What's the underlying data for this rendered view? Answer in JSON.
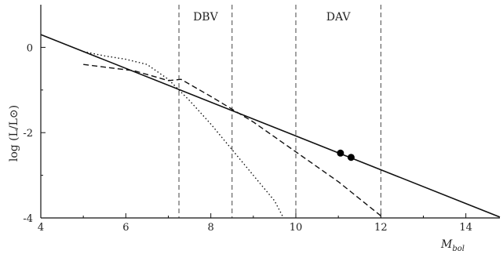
{
  "chart_data": {
    "type": "line",
    "title": "",
    "xlabel": "M",
    "xlabel_sub": "bol",
    "ylabel": "log (L/L⊙)",
    "xlim": [
      4,
      14.8
    ],
    "ylim": [
      -4,
      1.0
    ],
    "xticks": [
      4,
      6,
      8,
      10,
      12,
      14
    ],
    "yticks": [
      0,
      -2,
      -4
    ],
    "xtick_labels": [
      "4",
      "6",
      "8",
      "10",
      "12",
      "14"
    ],
    "ytick_labels": [
      "0",
      "-2",
      "-4"
    ],
    "grid": false,
    "legend": "none",
    "regions": [
      {
        "label": "DBV",
        "x_min": 7.25,
        "x_max": 8.5
      },
      {
        "label": "DAV",
        "x_min": 10.0,
        "x_max": 12.0
      }
    ],
    "series": [
      {
        "style": "solid",
        "x": [
          4.0,
          14.8
        ],
        "y": [
          0.3,
          -3.98
        ]
      },
      {
        "style": "dashed",
        "x": [
          5.0,
          6.2,
          7.0,
          7.3,
          8.0,
          9.0,
          10.0,
          11.0,
          12.0
        ],
        "y": [
          -0.4,
          -0.55,
          -0.78,
          -0.75,
          -1.15,
          -1.75,
          -2.45,
          -3.15,
          -3.95
        ]
      },
      {
        "style": "dotted",
        "x": [
          5.0,
          5.5,
          6.0,
          6.5,
          7.0,
          7.5,
          8.0,
          8.5,
          9.0,
          9.5,
          9.7
        ],
        "y": [
          -0.1,
          -0.2,
          -0.28,
          -0.4,
          -0.75,
          -1.25,
          -1.8,
          -2.4,
          -3.0,
          -3.6,
          -3.98
        ]
      }
    ],
    "points": [
      {
        "x": 11.05,
        "y": -2.48
      },
      {
        "x": 11.3,
        "y": -2.58
      }
    ]
  }
}
